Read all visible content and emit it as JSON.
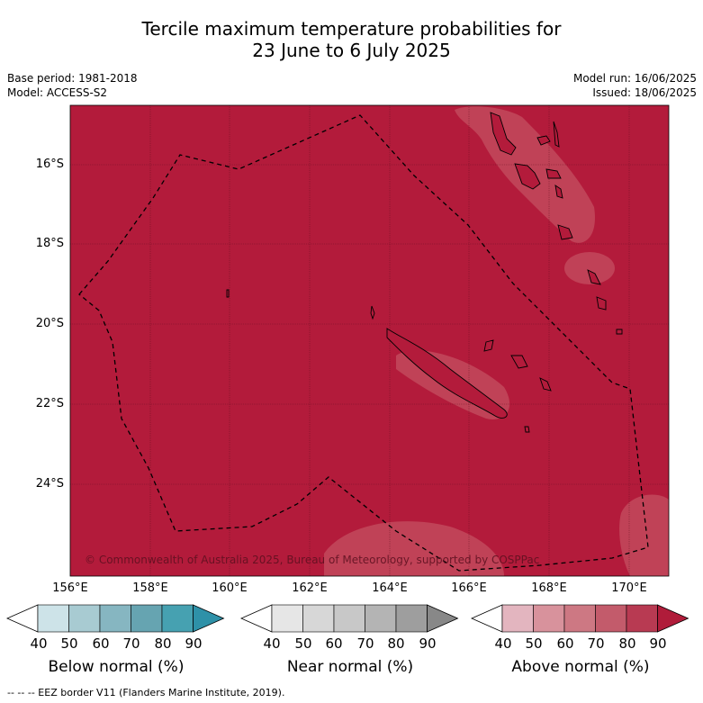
{
  "title_line1": "Tercile maximum temperature probabilities for",
  "title_line2": "23 June to 6 July 2025",
  "base_period": "Base period: 1981-2018",
  "model": "Model: ACCESS-S2",
  "model_run": "Model run: 16/06/2025",
  "issued": "Issued: 18/06/2025",
  "lat_labels": [
    "16°S",
    "18°S",
    "20°S",
    "22°S",
    "24°S"
  ],
  "lon_labels": [
    "156°E",
    "158°E",
    "160°E",
    "162°E",
    "164°E",
    "166°E",
    "168°E",
    "170°E"
  ],
  "copyright": "© Commonwealth of Australia 2025, Bureau of Meteorology, supported by COSPPac",
  "colorbars": [
    {
      "label": "Below normal (%)",
      "ticks": [
        "40",
        "50",
        "60",
        "70",
        "80",
        "90"
      ],
      "colors": [
        "#ffffff",
        "#cde3e8",
        "#a8cbd2",
        "#86b6c1",
        "#66a4b1",
        "#46a1b1",
        "#2e91a8"
      ]
    },
    {
      "label": "Near normal (%)",
      "ticks": [
        "40",
        "50",
        "60",
        "70",
        "80",
        "90"
      ],
      "colors": [
        "#ffffff",
        "#e6e6e6",
        "#d7d7d7",
        "#c8c8c8",
        "#b4b4b4",
        "#9e9e9e",
        "#888888"
      ]
    },
    {
      "label": "Above normal (%)",
      "ticks": [
        "40",
        "50",
        "60",
        "70",
        "80",
        "90"
      ],
      "colors": [
        "#ffffff",
        "#e3b5bf",
        "#d8929c",
        "#cd7883",
        "#c35b6b",
        "#b83a52",
        "#b01c3a"
      ]
    }
  ],
  "footer": "--  --  -- EEZ border V11 (Flanders Marine Institute, 2019).",
  "map_colors": {
    "above_90": "#b31b3b",
    "above_80": "#c14459"
  }
}
